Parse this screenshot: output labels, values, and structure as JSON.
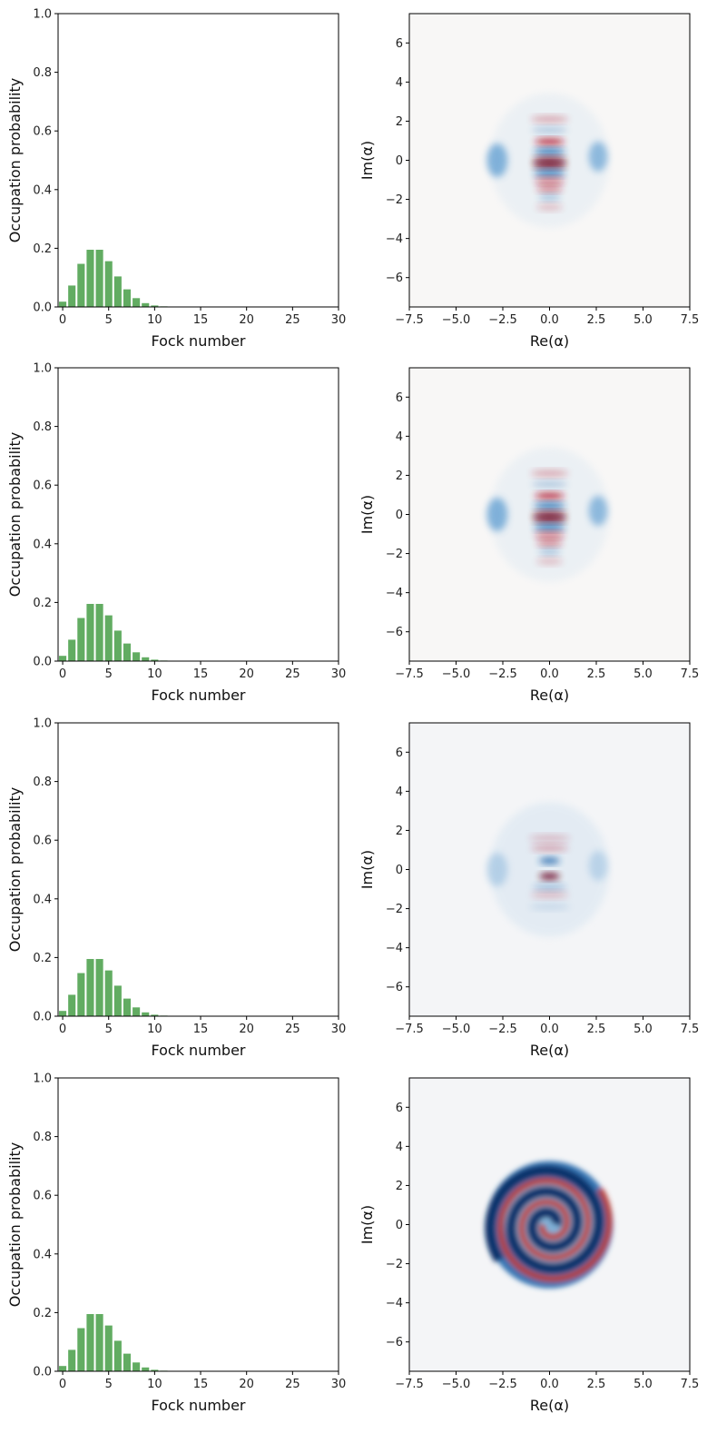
{
  "chart_data": [
    {
      "type": "bar",
      "xlabel": "Fock number",
      "ylabel": "Occupation probability",
      "xlim": [
        -0.5,
        30
      ],
      "ylim": [
        0,
        1.0
      ],
      "x_ticks": [
        0,
        5,
        10,
        15,
        20,
        25,
        30
      ],
      "y_ticks": [
        0.0,
        0.2,
        0.4,
        0.6,
        0.8,
        1.0
      ],
      "x": [
        0,
        1,
        2,
        3,
        4,
        5,
        6,
        7,
        8,
        9,
        10,
        11,
        12,
        13,
        14,
        15
      ],
      "values": [
        0.018,
        0.073,
        0.147,
        0.195,
        0.195,
        0.156,
        0.104,
        0.06,
        0.03,
        0.013,
        0.005,
        0.002,
        0.001,
        0.0,
        0.0,
        0.0
      ],
      "color": "#5aa85a"
    },
    {
      "type": "heatmap",
      "xlabel": "Re(α)",
      "ylabel": "Im(α)",
      "xlim": [
        -7.5,
        7.5
      ],
      "ylim": [
        -7.5,
        7.5
      ],
      "x_ticks": [
        -7.5,
        -5.0,
        -2.5,
        0.0,
        2.5,
        5.0,
        7.5
      ],
      "y_ticks": [
        -6,
        -4,
        -2,
        0,
        2,
        4,
        6
      ],
      "colormap": "RdBu",
      "pattern": "cat-state-interference-strong"
    },
    {
      "type": "bar",
      "xlabel": "Fock number",
      "ylabel": "Occupation probability",
      "xlim": [
        -0.5,
        30
      ],
      "ylim": [
        0,
        1.0
      ],
      "x_ticks": [
        0,
        5,
        10,
        15,
        20,
        25,
        30
      ],
      "y_ticks": [
        0.0,
        0.2,
        0.4,
        0.6,
        0.8,
        1.0
      ],
      "x": [
        0,
        1,
        2,
        3,
        4,
        5,
        6,
        7,
        8,
        9,
        10,
        11,
        12,
        13,
        14,
        15
      ],
      "values": [
        0.018,
        0.073,
        0.147,
        0.195,
        0.195,
        0.156,
        0.104,
        0.06,
        0.03,
        0.013,
        0.005,
        0.002,
        0.001,
        0.0,
        0.0,
        0.0
      ],
      "color": "#5aa85a"
    },
    {
      "type": "heatmap",
      "xlabel": "Re(α)",
      "ylabel": "Im(α)",
      "xlim": [
        -7.5,
        7.5
      ],
      "ylim": [
        -7.5,
        7.5
      ],
      "x_ticks": [
        -7.5,
        -5.0,
        -2.5,
        0.0,
        2.5,
        5.0,
        7.5
      ],
      "y_ticks": [
        -6,
        -4,
        -2,
        0,
        2,
        4,
        6
      ],
      "colormap": "RdBu",
      "pattern": "cat-state-interference-strong"
    },
    {
      "type": "bar",
      "xlabel": "Fock number",
      "ylabel": "Occupation probability",
      "xlim": [
        -0.5,
        30
      ],
      "ylim": [
        0,
        1.0
      ],
      "x_ticks": [
        0,
        5,
        10,
        15,
        20,
        25,
        30
      ],
      "y_ticks": [
        0.0,
        0.2,
        0.4,
        0.6,
        0.8,
        1.0
      ],
      "x": [
        0,
        1,
        2,
        3,
        4,
        5,
        6,
        7,
        8,
        9,
        10,
        11,
        12,
        13,
        14,
        15
      ],
      "values": [
        0.018,
        0.073,
        0.147,
        0.195,
        0.195,
        0.156,
        0.104,
        0.06,
        0.03,
        0.013,
        0.005,
        0.002,
        0.001,
        0.0,
        0.0,
        0.0
      ],
      "color": "#5aa85a"
    },
    {
      "type": "heatmap",
      "xlabel": "Re(α)",
      "ylabel": "Im(α)",
      "xlim": [
        -7.5,
        7.5
      ],
      "ylim": [
        -7.5,
        7.5
      ],
      "x_ticks": [
        -7.5,
        -5.0,
        -2.5,
        0.0,
        2.5,
        5.0,
        7.5
      ],
      "y_ticks": [
        -6,
        -4,
        -2,
        0,
        2,
        4,
        6
      ],
      "colormap": "RdBu",
      "pattern": "cat-state-interference-faded"
    },
    {
      "type": "bar",
      "xlabel": "Fock number",
      "ylabel": "Occupation probability",
      "xlim": [
        -0.5,
        30
      ],
      "ylim": [
        0,
        1.0
      ],
      "x_ticks": [
        0,
        5,
        10,
        15,
        20,
        25,
        30
      ],
      "y_ticks": [
        0.0,
        0.2,
        0.4,
        0.6,
        0.8,
        1.0
      ],
      "x": [
        0,
        1,
        2,
        3,
        4,
        5,
        6,
        7,
        8,
        9,
        10,
        11,
        12,
        13,
        14,
        15
      ],
      "values": [
        0.018,
        0.073,
        0.147,
        0.195,
        0.195,
        0.156,
        0.104,
        0.06,
        0.03,
        0.013,
        0.005,
        0.002,
        0.001,
        0.0,
        0.0,
        0.0
      ],
      "color": "#5aa85a"
    },
    {
      "type": "heatmap",
      "xlabel": "Re(α)",
      "ylabel": "Im(α)",
      "xlim": [
        -7.5,
        7.5
      ],
      "ylim": [
        -7.5,
        7.5
      ],
      "x_ticks": [
        -7.5,
        -5.0,
        -2.5,
        0.0,
        2.5,
        5.0,
        7.5
      ],
      "y_ticks": [
        -6,
        -4,
        -2,
        0,
        2,
        4,
        6
      ],
      "colormap": "RdBu",
      "pattern": "spiral"
    }
  ]
}
